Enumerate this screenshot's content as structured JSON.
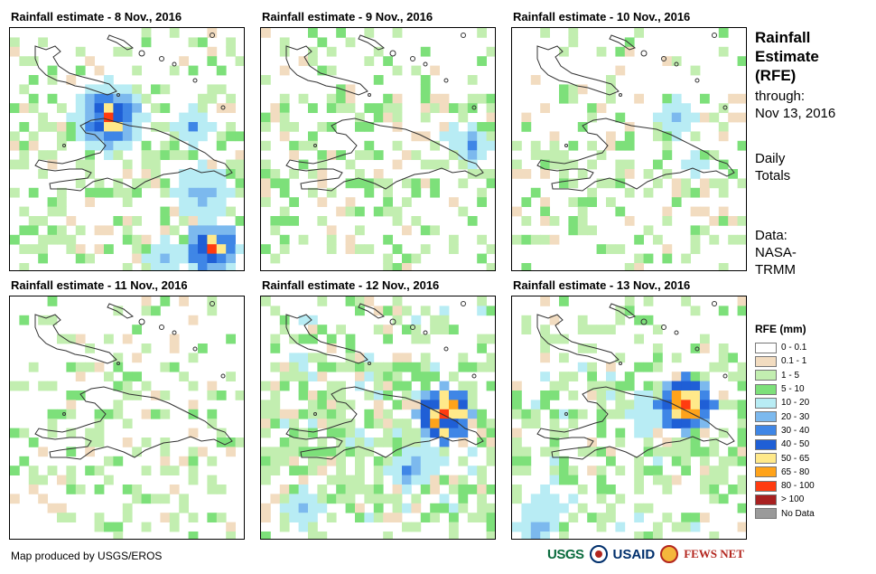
{
  "panels": [
    {
      "title": "Rainfall estimate - 8 Nov., 2016"
    },
    {
      "title": "Rainfall estimate - 9 Nov., 2016"
    },
    {
      "title": "Rainfall estimate - 10 Nov., 2016"
    },
    {
      "title": "Rainfall estimate - 11 Nov., 2016"
    },
    {
      "title": "Rainfall estimate - 12 Nov., 2016"
    },
    {
      "title": "Rainfall estimate - 13 Nov., 2016"
    }
  ],
  "side": {
    "title_lines": [
      "Rainfall",
      "Estimate",
      "(RFE)"
    ],
    "through_label": "through:",
    "through_date": "Nov 13, 2016",
    "period_lines": [
      "Daily",
      "Totals"
    ],
    "data_lines": [
      "Data:",
      "NASA-",
      "TRMM"
    ]
  },
  "legend": {
    "title": "RFE (mm)",
    "items": [
      {
        "label": "0 - 0.1",
        "color": "#ffffff"
      },
      {
        "label": "0.1 - 1",
        "color": "#f2dcc0"
      },
      {
        "label": "1 - 5",
        "color": "#c2eeb0"
      },
      {
        "label": "5 - 10",
        "color": "#7de07a"
      },
      {
        "label": "10 - 20",
        "color": "#b8ecf4"
      },
      {
        "label": "20 - 30",
        "color": "#7cb9ee"
      },
      {
        "label": "30 - 40",
        "color": "#3f86e6"
      },
      {
        "label": "40 - 50",
        "color": "#1f5fd6"
      },
      {
        "label": "50 - 65",
        "color": "#ffe98a"
      },
      {
        "label": "65 - 80",
        "color": "#ffa31a"
      },
      {
        "label": "80 - 100",
        "color": "#ff3b10"
      },
      {
        "label": "> 100",
        "color": "#a82020"
      },
      {
        "label": "No Data",
        "color": "#9a9a9a"
      }
    ]
  },
  "footer": {
    "credit": "Map produced by USGS/EROS"
  },
  "logos": {
    "usgs": "USGS",
    "usaid": "USAID",
    "fews": "FEWS NET"
  }
}
